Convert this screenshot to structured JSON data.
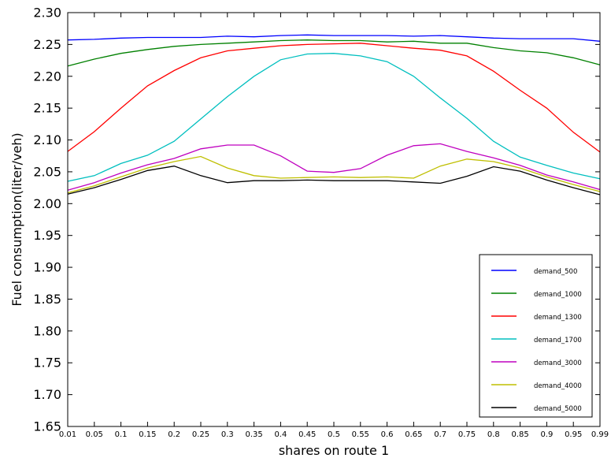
{
  "chart_data": {
    "type": "line",
    "title": "",
    "xlabel": "shares on route 1",
    "ylabel": "Fuel consumption(liter/veh)",
    "x": [
      0.01,
      0.05,
      0.1,
      0.15,
      0.2,
      0.25,
      0.3,
      0.35,
      0.4,
      0.45,
      0.5,
      0.55,
      0.6,
      0.65,
      0.7,
      0.75,
      0.8,
      0.85,
      0.9,
      0.95,
      0.99
    ],
    "x_tick_labels": [
      "0.01",
      "0.05",
      "0.1",
      "0.15",
      "0.2",
      "0.25",
      "0.3",
      "0.35",
      "0.4",
      "0.45",
      "0.5",
      "0.55",
      "0.6",
      "0.65",
      "0.7",
      "0.75",
      "0.8",
      "0.85",
      "0.9",
      "0.95",
      "0.99"
    ],
    "ylim": [
      1.65,
      2.3
    ],
    "y_ticks": [
      1.65,
      1.7,
      1.75,
      1.8,
      1.85,
      1.9,
      1.95,
      2.0,
      2.05,
      2.1,
      2.15,
      2.2,
      2.25,
      2.3
    ],
    "y_tick_labels": [
      "1.65",
      "1.70",
      "1.75",
      "1.80",
      "1.85",
      "1.90",
      "1.95",
      "2.00",
      "2.05",
      "2.10",
      "2.15",
      "2.20",
      "2.25",
      "2.30"
    ],
    "grid": false,
    "legend_position": "bottom-right",
    "series": [
      {
        "name": "demand_500",
        "color": "#0000ff",
        "values": [
          2.257,
          2.258,
          2.26,
          2.261,
          2.261,
          2.261,
          2.263,
          2.262,
          2.264,
          2.265,
          2.264,
          2.264,
          2.264,
          2.263,
          2.264,
          2.262,
          2.26,
          2.259,
          2.259,
          2.259,
          2.255
        ]
      },
      {
        "name": "demand_1000",
        "color": "#008000",
        "values": [
          2.216,
          2.227,
          2.236,
          2.242,
          2.247,
          2.25,
          2.252,
          2.254,
          2.256,
          2.257,
          2.256,
          2.256,
          2.254,
          2.255,
          2.252,
          2.252,
          2.245,
          2.24,
          2.237,
          2.229,
          2.218
        ]
      },
      {
        "name": "demand_1300",
        "color": "#ff0000",
        "values": [
          2.082,
          2.113,
          2.15,
          2.185,
          2.209,
          2.229,
          2.24,
          2.244,
          2.248,
          2.25,
          2.251,
          2.252,
          2.248,
          2.244,
          2.241,
          2.232,
          2.208,
          2.178,
          2.15,
          2.112,
          2.081
        ]
      },
      {
        "name": "demand_1700",
        "color": "#00bfbf",
        "values": [
          2.035,
          2.044,
          2.063,
          2.076,
          2.098,
          2.133,
          2.168,
          2.2,
          2.226,
          2.235,
          2.236,
          2.232,
          2.223,
          2.2,
          2.166,
          2.134,
          2.098,
          2.073,
          2.06,
          2.048,
          2.039
        ]
      },
      {
        "name": "demand_3000",
        "color": "#bf00bf",
        "values": [
          2.021,
          2.033,
          2.048,
          2.061,
          2.071,
          2.086,
          2.092,
          2.092,
          2.075,
          2.051,
          2.049,
          2.055,
          2.076,
          2.091,
          2.094,
          2.082,
          2.072,
          2.06,
          2.045,
          2.034,
          2.022
        ]
      },
      {
        "name": "demand_4000",
        "color": "#bfbf00",
        "values": [
          2.017,
          2.028,
          2.042,
          2.056,
          2.066,
          2.074,
          2.056,
          2.044,
          2.04,
          2.041,
          2.042,
          2.041,
          2.042,
          2.04,
          2.059,
          2.07,
          2.066,
          2.056,
          2.042,
          2.03,
          2.019
        ]
      },
      {
        "name": "demand_5000",
        "color": "#000000",
        "values": [
          2.015,
          2.025,
          2.038,
          2.052,
          2.059,
          2.044,
          2.033,
          2.036,
          2.036,
          2.037,
          2.036,
          2.036,
          2.036,
          2.034,
          2.032,
          2.043,
          2.058,
          2.051,
          2.037,
          2.025,
          2.014
        ]
      }
    ]
  }
}
